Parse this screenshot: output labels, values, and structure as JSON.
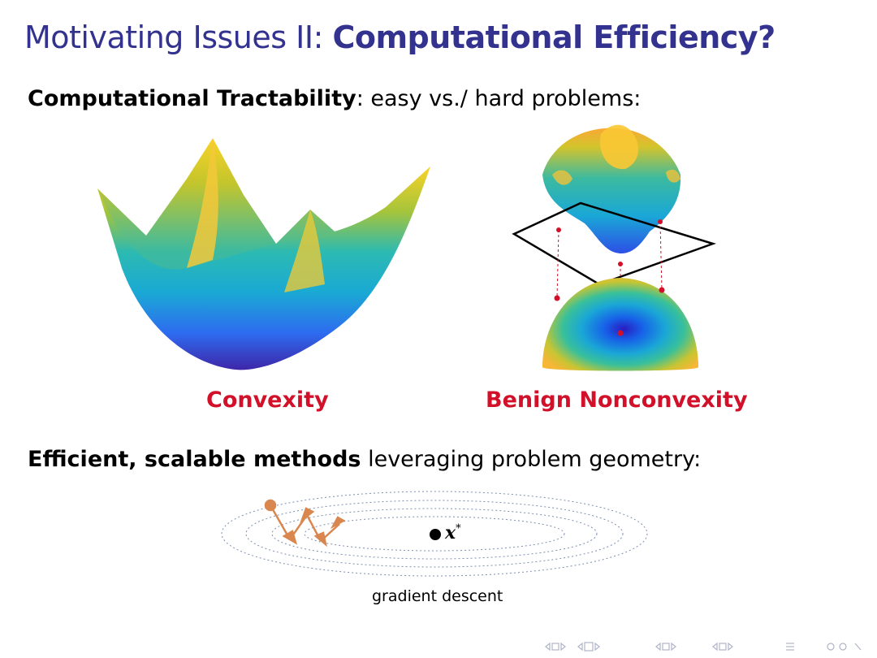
{
  "title": {
    "light": "Motivating Issues II: ",
    "bold": "Computational Efficiency?"
  },
  "tractability": {
    "bold": "Computational Tractability",
    "rest": ": easy vs./ hard problems:"
  },
  "labels": {
    "convexity": "Convexity",
    "benign": "Benign Nonconvexity"
  },
  "methods": {
    "bold": "Efficient, scalable methods",
    "rest": " leveraging problem geometry:"
  },
  "gd": {
    "optimum_symbol": "x",
    "optimum_sup": "*",
    "caption": "gradient descent"
  },
  "colors": {
    "title": "#33338f",
    "accent_red": "#d2102a",
    "parula_dark": "#3e26a8",
    "parula_blue": "#1779e6",
    "parula_teal": "#2cbab2",
    "parula_yellow": "#f9d228",
    "arrow": "#d9874e"
  },
  "nav": {
    "icons": [
      "nav-frame-left",
      "nav-frame-right",
      "nav-subsection",
      "nav-section-left",
      "nav-section-right",
      "nav-align",
      "nav-search"
    ]
  }
}
